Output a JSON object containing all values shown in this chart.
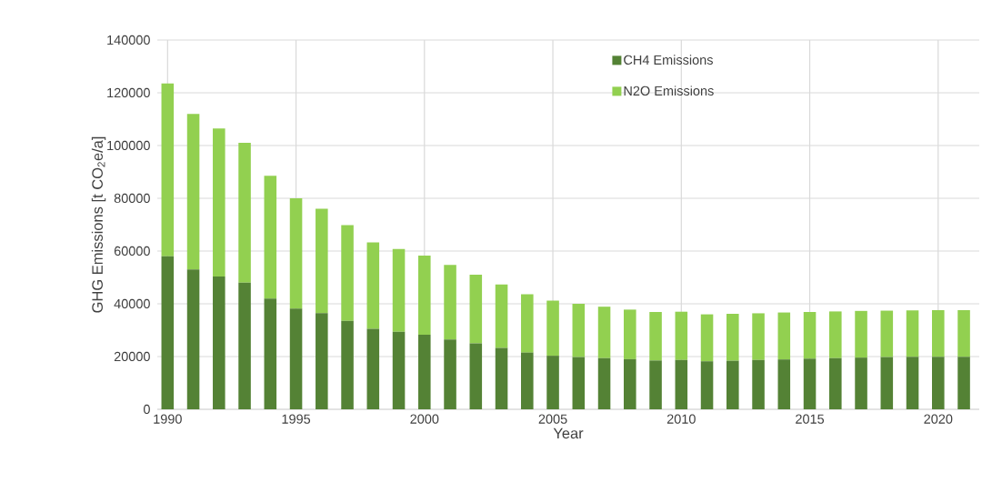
{
  "chart_data": {
    "type": "bar",
    "stacked": true,
    "xlabel": "Year",
    "ylabel": "GHG Emissions [t CO$_{2}$e/a]",
    "x": [
      1990,
      1991,
      1992,
      1993,
      1994,
      1995,
      1996,
      1997,
      1998,
      1999,
      2000,
      2001,
      2002,
      2003,
      2004,
      2005,
      2006,
      2007,
      2008,
      2009,
      2010,
      2011,
      2012,
      2013,
      2014,
      2015,
      2016,
      2017,
      2018,
      2019,
      2020,
      2021
    ],
    "series": [
      {
        "name": "CH4 Emissions",
        "color": "#548235",
        "values": [
          58000,
          53000,
          50300,
          48000,
          42000,
          38200,
          36500,
          33500,
          30500,
          29400,
          28300,
          26500,
          25000,
          23300,
          21500,
          20300,
          19800,
          19400,
          19000,
          18500,
          18700,
          18200,
          18400,
          18700,
          18900,
          19200,
          19400,
          19600,
          19800,
          19900,
          19900,
          19900
        ]
      },
      {
        "name": "N2O Emissions",
        "color": "#92d050",
        "values": [
          65500,
          59000,
          56200,
          53000,
          46500,
          41800,
          39500,
          36300,
          32800,
          31400,
          30000,
          28200,
          26000,
          24000,
          22100,
          20900,
          20200,
          19500,
          18800,
          18400,
          18300,
          17800,
          17800,
          17700,
          17800,
          17700,
          17700,
          17700,
          17600,
          17600,
          17700,
          17700
        ]
      }
    ],
    "xlim": [
      1989.6,
      2021.6
    ],
    "xticks": [
      1990,
      1995,
      2000,
      2005,
      2010,
      2015,
      2020
    ],
    "ylim": [
      0,
      140000
    ],
    "yticks": [
      0,
      20000,
      40000,
      60000,
      80000,
      100000,
      120000,
      140000
    ],
    "grid": true,
    "legend": "top right"
  }
}
